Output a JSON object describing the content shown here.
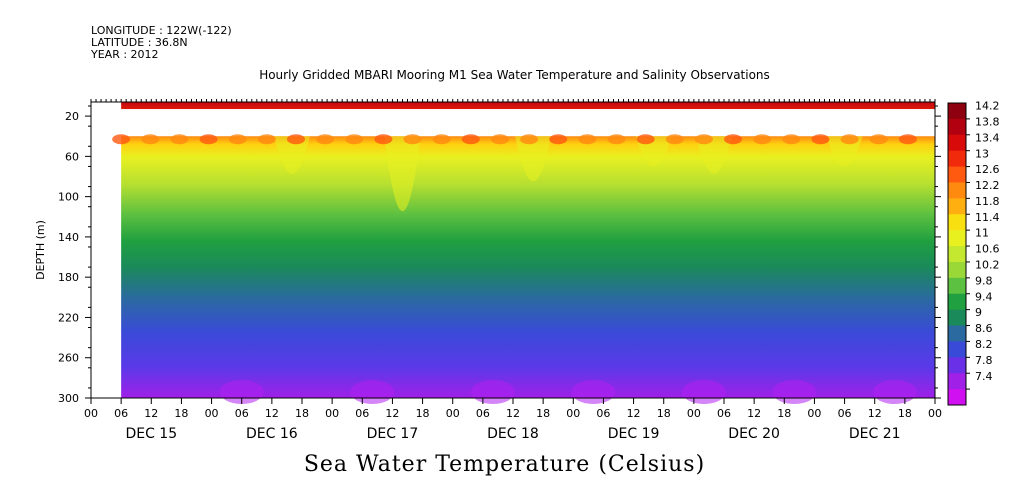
{
  "header": {
    "longitude": "LONGITUDE : 122W(-122)",
    "latitude": "LATITUDE : 36.8N",
    "year": "YEAR : 2012",
    "title": "Hourly Gridded MBARI Mooring M1 Sea Water Temperature and Salinity Observations"
  },
  "chart_data": {
    "type": "heatmap",
    "title": "Hourly Gridded MBARI Mooring M1 Sea Water Temperature and Salinity Observations",
    "xlabel": "Sea Water Temperature (Celsius)",
    "ylabel": "DEPTH (m)",
    "y_reversed": true,
    "ylim": [
      300,
      6
    ],
    "y_ticks": [
      20,
      60,
      100,
      140,
      180,
      220,
      260,
      300
    ],
    "x_hour_labels": [
      "00",
      "06",
      "12",
      "18",
      "00",
      "06",
      "12",
      "18",
      "00",
      "06",
      "12",
      "18",
      "00",
      "06",
      "12",
      "18",
      "00",
      "06",
      "12",
      "18",
      "00",
      "06",
      "12",
      "18",
      "00",
      "06",
      "12",
      "18",
      "00"
    ],
    "x_day_labels": [
      "DEC 15",
      "DEC 16",
      "DEC 17",
      "DEC 18",
      "DEC 19",
      "DEC 20",
      "DEC 21"
    ],
    "x_range_hours": [
      0,
      168
    ],
    "data_start_hour": 6,
    "data_gap_depth_range": [
      13,
      40
    ],
    "colorbar": {
      "levels": [
        "14.2",
        "13.8",
        "13.4",
        "13",
        "12.6",
        "12.2",
        "11.8",
        "11.4",
        "11",
        "10.6",
        "10.2",
        "9.8",
        "9.4",
        "9",
        "8.6",
        "8.2",
        "7.8",
        "7.4"
      ],
      "colors": [
        "#8e0010",
        "#b20010",
        "#d80a0a",
        "#f02a0a",
        "#ff5a10",
        "#ff8a10",
        "#ffb010",
        "#f8e010",
        "#e8f020",
        "#c4e830",
        "#9ad838",
        "#5cc040",
        "#20a040",
        "#1a8a5a",
        "#2a6aa0",
        "#3a4ad8",
        "#6a30e8",
        "#a020e8",
        "#d010f0"
      ]
    },
    "surface_temp": "13.8-14.2",
    "temp_top_of_lower_layer": "12.2-13.8",
    "temp_mid_depth_100_140": "10.2-11.4",
    "temp_bottom_280_300": "7.4-8.2"
  }
}
